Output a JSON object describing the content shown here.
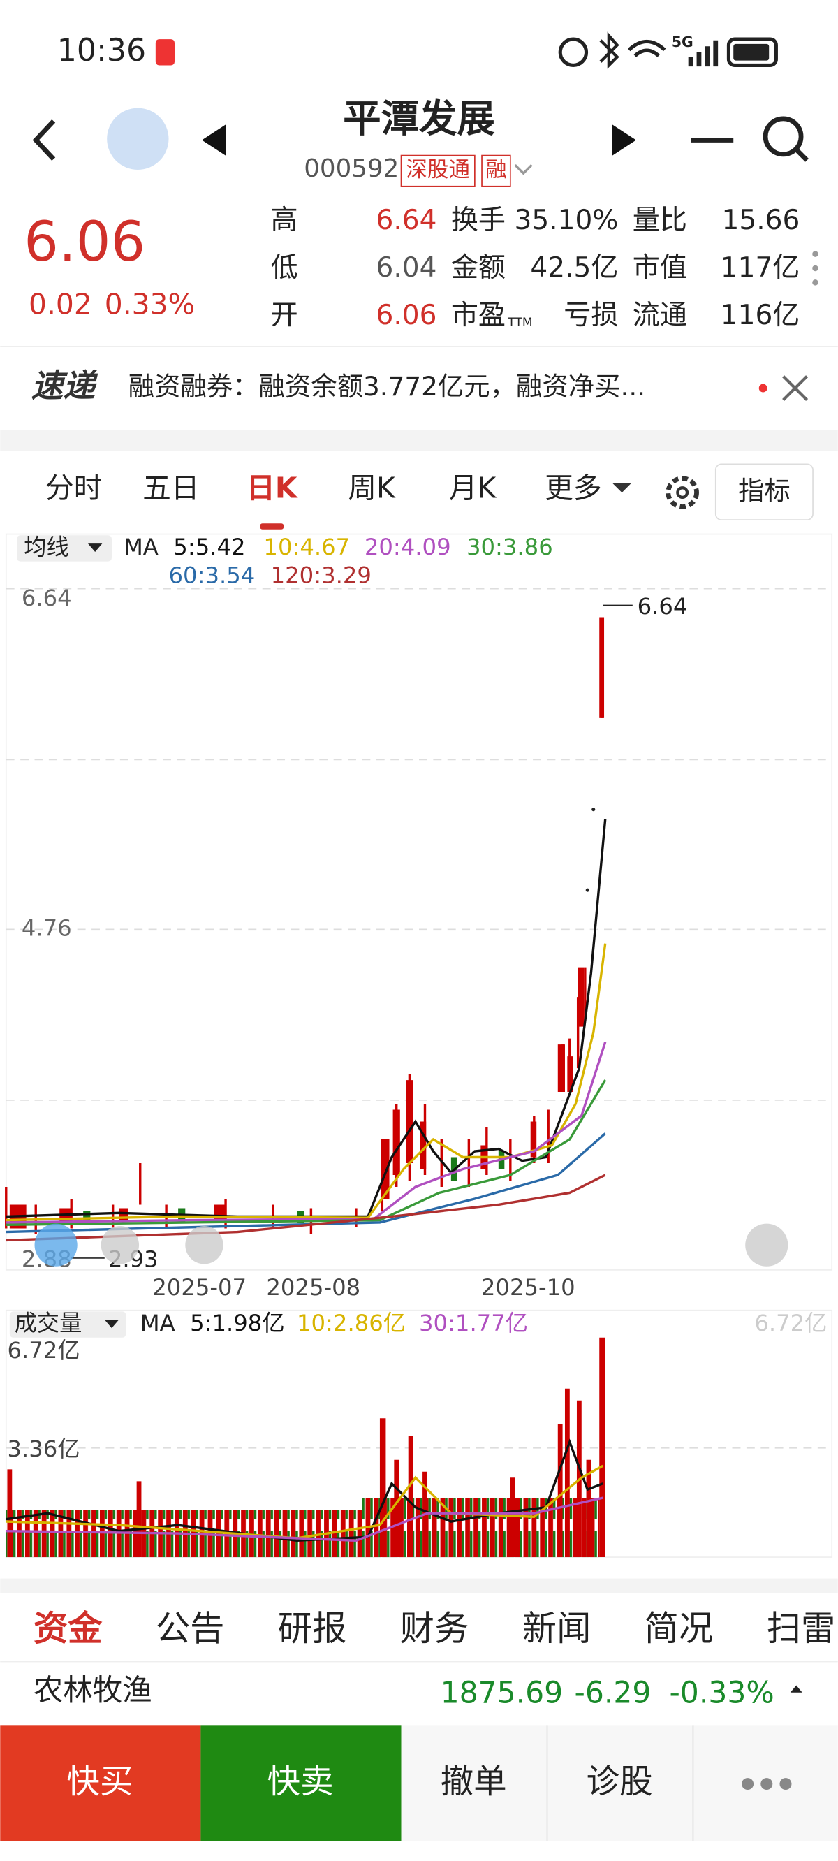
{
  "status": {
    "time": "10:36",
    "network": "5G"
  },
  "header": {
    "title": "平潭发展",
    "code": "000592",
    "tags": [
      "深股通",
      "融"
    ]
  },
  "quote": {
    "price": "6.06",
    "change": "0.02",
    "change_pct": "0.33%",
    "stats": [
      [
        {
          "label": "高",
          "value": "6.64"
        },
        {
          "label": "换手",
          "value": "35.10%"
        },
        {
          "label": "量比",
          "value": "15.66"
        }
      ],
      [
        {
          "label": "低",
          "value": "6.04"
        },
        {
          "label": "金额",
          "value": "42.5亿"
        },
        {
          "label": "市值",
          "value": "117亿"
        }
      ],
      [
        {
          "label": "开",
          "value": "6.06"
        },
        {
          "label": "市盈",
          "sub": "TTM",
          "value": "亏损"
        },
        {
          "label": "流通",
          "value": "116亿"
        }
      ]
    ]
  },
  "news": {
    "badge": "速递",
    "text": "融资融券：融资余额3.772亿元，融资净买..."
  },
  "tabs": {
    "items": [
      "分时",
      "五日",
      "日K",
      "周K",
      "月K",
      "更多"
    ],
    "button": "指标"
  },
  "kchart": {
    "ma_menu": "均线",
    "ma": [
      "MA",
      "5:5.42",
      "10:4.67",
      "20:4.09",
      "30:3.86",
      "60:3.54",
      "120:3.29"
    ],
    "price_labels": [
      "6.64",
      "4.76",
      "2.88"
    ],
    "high_marker": "6.64",
    "low_marker": "2.93",
    "dates": [
      "2025-07",
      "2025-08",
      "2025-10"
    ]
  },
  "volume": {
    "menu": "成交量",
    "ma": [
      "MA",
      "5:1.98亿",
      "10:2.86亿",
      "30:1.77亿"
    ],
    "axis": [
      "6.72亿",
      "3.36亿"
    ],
    "right_label": "6.72亿"
  },
  "bottom_tabs": [
    "资金",
    "公告",
    "研报",
    "财务",
    "新闻",
    "简况",
    "扫雷"
  ],
  "index": {
    "name": "农林牧渔",
    "value": "1875.69",
    "change": "-6.29",
    "change_pct": "-0.33%"
  },
  "actions": [
    "快买",
    "快卖",
    "撤单",
    "诊股"
  ]
}
